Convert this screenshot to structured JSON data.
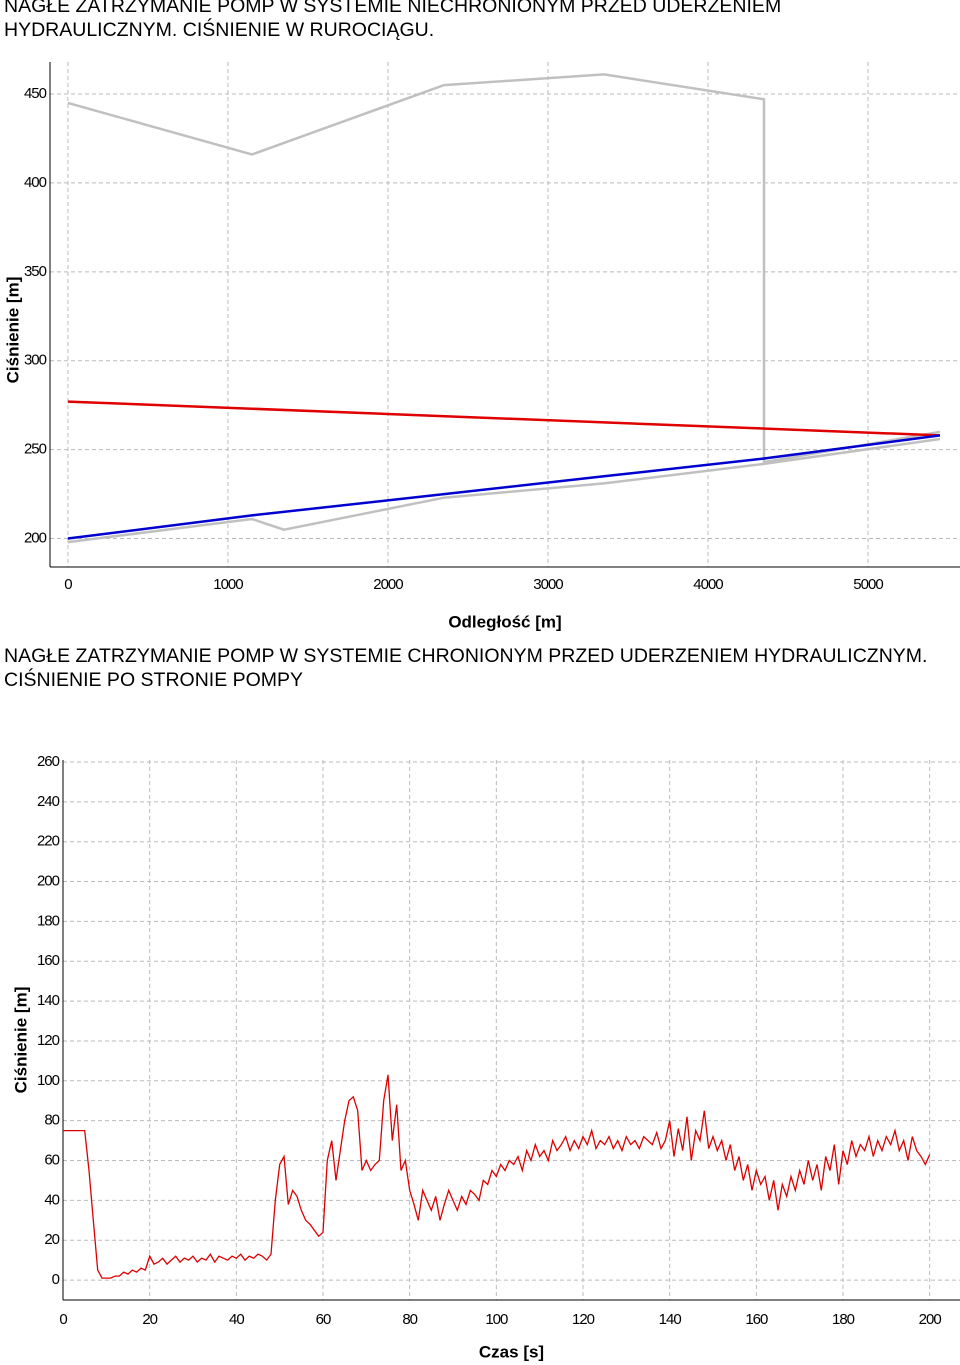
{
  "chart_data": [
    {
      "type": "line",
      "title": "NAGŁE ZATRZYMANIE POMP W SYSTEMIE NIECHRONIONYM PRZED UDERZENIEM HYDRAULICZNYM. CIŚNIENIE W RUROCIĄGU.",
      "x_label": "Odległość [m]",
      "y_label": "Ciśnienie [m]",
      "xlim": [
        -112,
        5575
      ],
      "ylim": [
        184,
        468
      ],
      "xticks": [
        0,
        1000,
        2000,
        3000,
        4000,
        5000
      ],
      "yticks": [
        200,
        250,
        300,
        350,
        400,
        450
      ],
      "grid": true,
      "series": [
        {
          "color": "#c0c0c0",
          "x": [
            0,
            1150,
            2350,
            3350,
            4350,
            4350,
            4350,
            5450
          ],
          "values": [
            445,
            416,
            455,
            461,
            447,
            447,
            243,
            260
          ]
        },
        {
          "color": "#c0c0c0",
          "x": [
            0,
            1150,
            1350,
            2350,
            3350,
            4350,
            5450
          ],
          "values": [
            198,
            211,
            205,
            223,
            231,
            242,
            256
          ]
        },
        {
          "color": "#e00000",
          "x": [
            0,
            5450
          ],
          "values": [
            277,
            258
          ]
        },
        {
          "color": "#0000d0",
          "x": [
            0,
            1150,
            2350,
            3350,
            4350,
            5450
          ],
          "values": [
            200,
            213,
            225,
            235,
            245,
            258
          ]
        }
      ]
    },
    {
      "type": "line",
      "title": "NAGŁE ZATRZYMANIE POMP W SYSTEMIE CHRONIONYM PRZED UDERZENIEM HYDRAULICZNYM. CIŚNIENIE PO STRONIE POMPY",
      "x_label": "Czas [s]",
      "y_label": "Ciśnienie [m]",
      "xlim": [
        0,
        207
      ],
      "ylim": [
        -10,
        261
      ],
      "xticks": [
        0,
        20,
        40,
        60,
        80,
        100,
        120,
        140,
        160,
        180,
        200
      ],
      "yticks": [
        0,
        20,
        40,
        60,
        80,
        100,
        120,
        140,
        160,
        180,
        200,
        220,
        240,
        260
      ],
      "grid": true,
      "series": [
        {
          "color": "#dd0000",
          "x": [
            0,
            1,
            2,
            3,
            4,
            5,
            6,
            7,
            8,
            9,
            10,
            11,
            12,
            13,
            14,
            15,
            16,
            17,
            18,
            19,
            20,
            21,
            22,
            23,
            24,
            25,
            26,
            27,
            28,
            29,
            30,
            31,
            32,
            33,
            34,
            35,
            36,
            37,
            38,
            39,
            40,
            41,
            42,
            43,
            44,
            45,
            46,
            47,
            48,
            49,
            50,
            51,
            52,
            53,
            54,
            55,
            56,
            57,
            58,
            59,
            60,
            61,
            62,
            63,
            64,
            65,
            66,
            67,
            68,
            69,
            70,
            71,
            72,
            73,
            74,
            75,
            76,
            77,
            78,
            79,
            80,
            81,
            82,
            83,
            84,
            85,
            86,
            87,
            88,
            89,
            90,
            91,
            92,
            93,
            94,
            95,
            96,
            97,
            98,
            99,
            100,
            101,
            102,
            103,
            104,
            105,
            106,
            107,
            108,
            109,
            110,
            111,
            112,
            113,
            114,
            115,
            116,
            117,
            118,
            119,
            120,
            121,
            122,
            123,
            124,
            125,
            126,
            127,
            128,
            129,
            130,
            131,
            132,
            133,
            134,
            135,
            136,
            137,
            138,
            139,
            140,
            141,
            142,
            143,
            144,
            145,
            146,
            147,
            148,
            149,
            150,
            151,
            152,
            153,
            154,
            155,
            156,
            157,
            158,
            159,
            160,
            161,
            162,
            163,
            164,
            165,
            166,
            167,
            168,
            169,
            170,
            171,
            172,
            173,
            174,
            175,
            176,
            177,
            178,
            179,
            180,
            181,
            182,
            183,
            184,
            185,
            186,
            187,
            188,
            189,
            190,
            191,
            192,
            193,
            194,
            195,
            196,
            197,
            198,
            199,
            200
          ],
          "values": [
            75,
            75,
            75,
            75,
            75,
            75,
            55,
            30,
            5,
            1,
            1,
            1,
            2,
            2,
            4,
            3,
            5,
            4,
            6,
            5,
            12,
            8,
            9,
            11,
            8,
            10,
            12,
            9,
            11,
            10,
            12,
            9,
            11,
            10,
            13,
            9,
            12,
            11,
            10,
            12,
            11,
            13,
            10,
            12,
            11,
            13,
            12,
            10,
            13,
            40,
            58,
            62,
            38,
            45,
            42,
            35,
            30,
            28,
            25,
            22,
            24,
            60,
            70,
            50,
            65,
            80,
            90,
            92,
            85,
            55,
            60,
            55,
            58,
            60,
            90,
            103,
            70,
            88,
            55,
            60,
            45,
            38,
            30,
            45,
            40,
            35,
            42,
            30,
            38,
            45,
            40,
            35,
            42,
            38,
            45,
            43,
            40,
            50,
            48,
            55,
            52,
            58,
            55,
            60,
            58,
            62,
            55,
            65,
            60,
            68,
            62,
            65,
            60,
            70,
            65,
            68,
            72,
            65,
            70,
            66,
            72,
            68,
            75,
            66,
            70,
            68,
            72,
            66,
            70,
            65,
            72,
            68,
            70,
            66,
            72,
            70,
            68,
            74,
            66,
            70,
            80,
            62,
            76,
            65,
            82,
            60,
            75,
            70,
            85,
            66,
            72,
            65,
            70,
            60,
            68,
            55,
            62,
            50,
            58,
            45,
            55,
            48,
            52,
            40,
            50,
            35,
            48,
            42,
            52,
            45,
            55,
            48,
            60,
            50,
            58,
            45,
            62,
            55,
            68,
            48,
            65,
            58,
            70,
            62,
            68,
            65,
            72,
            62,
            70,
            65,
            72,
            68,
            75,
            65,
            70,
            60,
            72,
            65,
            62,
            58,
            63
          ]
        }
      ]
    }
  ]
}
